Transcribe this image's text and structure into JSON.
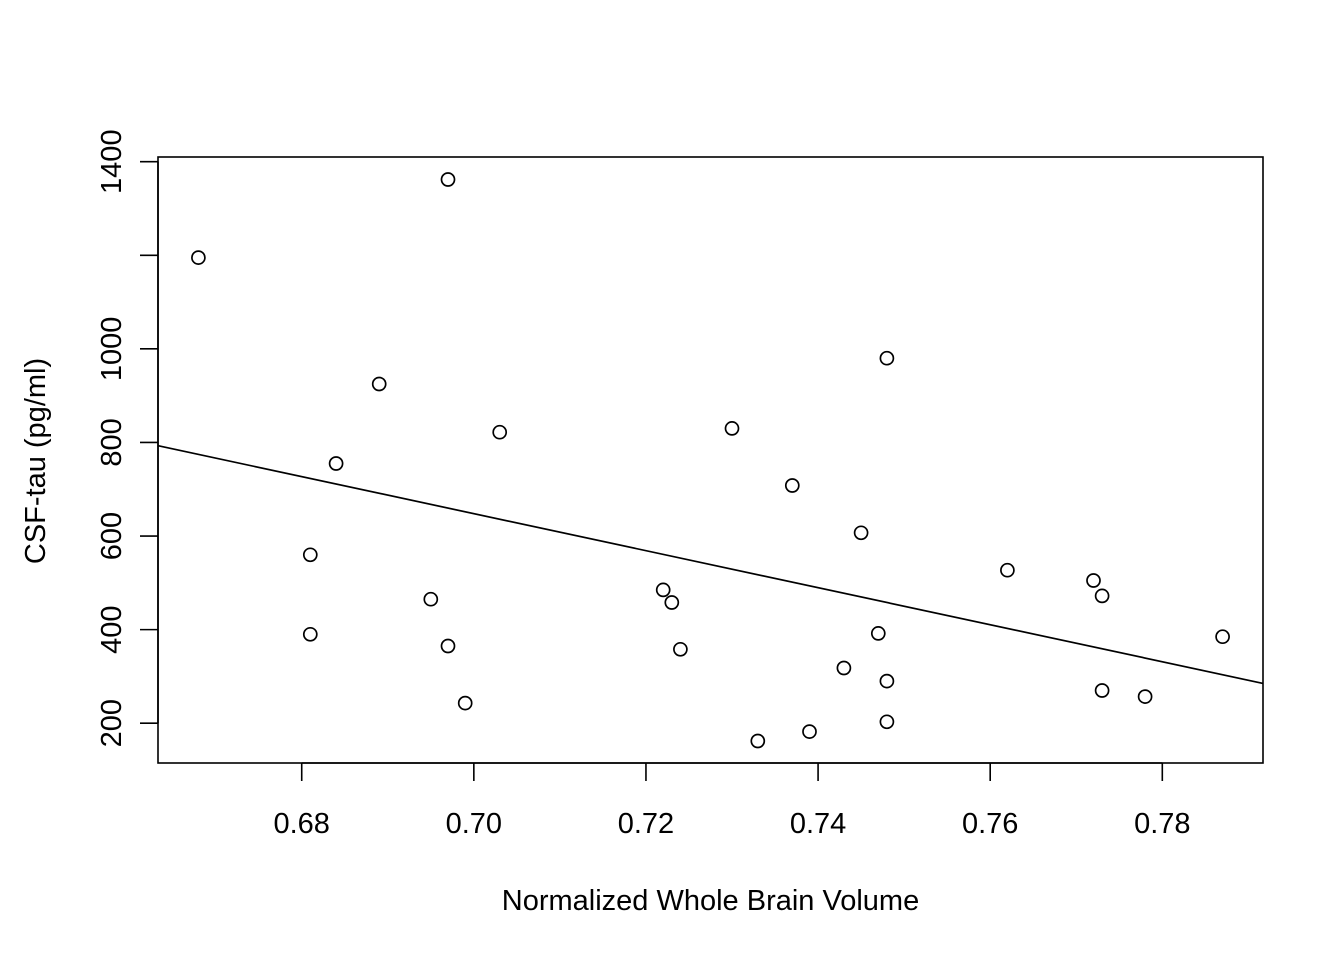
{
  "chart_data": {
    "type": "scatter",
    "title": "",
    "xlabel": "Normalized Whole Brain Volume",
    "ylabel": "CSF-tau (pg/ml)",
    "xlim": [
      0.6633,
      0.7917
    ],
    "ylim": [
      115,
      1410
    ],
    "x_ticks": [
      0.68,
      0.7,
      0.72,
      0.74,
      0.76,
      0.78
    ],
    "x_tick_labels": [
      "0.68",
      "0.70",
      "0.72",
      "0.74",
      "0.76",
      "0.78"
    ],
    "y_ticks": [
      200,
      400,
      600,
      800,
      1000,
      1400
    ],
    "y_tick_labels": [
      "200",
      "400",
      "600",
      "800",
      "1000",
      "1400"
    ],
    "y_extra_ticks": [
      1200
    ],
    "grid": false,
    "legend": "none",
    "marker": "open-circle",
    "points": [
      {
        "x": 0.668,
        "y": 1195
      },
      {
        "x": 0.681,
        "y": 560
      },
      {
        "x": 0.681,
        "y": 390
      },
      {
        "x": 0.684,
        "y": 755
      },
      {
        "x": 0.689,
        "y": 925
      },
      {
        "x": 0.695,
        "y": 465
      },
      {
        "x": 0.697,
        "y": 1362
      },
      {
        "x": 0.697,
        "y": 365
      },
      {
        "x": 0.699,
        "y": 243
      },
      {
        "x": 0.703,
        "y": 822
      },
      {
        "x": 0.722,
        "y": 485
      },
      {
        "x": 0.723,
        "y": 458
      },
      {
        "x": 0.724,
        "y": 358
      },
      {
        "x": 0.73,
        "y": 830
      },
      {
        "x": 0.733,
        "y": 162
      },
      {
        "x": 0.737,
        "y": 708
      },
      {
        "x": 0.739,
        "y": 182
      },
      {
        "x": 0.743,
        "y": 318
      },
      {
        "x": 0.745,
        "y": 607
      },
      {
        "x": 0.747,
        "y": 392
      },
      {
        "x": 0.748,
        "y": 980
      },
      {
        "x": 0.748,
        "y": 290
      },
      {
        "x": 0.748,
        "y": 203
      },
      {
        "x": 0.762,
        "y": 527
      },
      {
        "x": 0.772,
        "y": 505
      },
      {
        "x": 0.773,
        "y": 472
      },
      {
        "x": 0.773,
        "y": 270
      },
      {
        "x": 0.778,
        "y": 257
      },
      {
        "x": 0.787,
        "y": 385
      }
    ],
    "regression_line": {
      "x": [
        0.6633,
        0.7917
      ],
      "y": [
        793,
        285
      ]
    }
  }
}
